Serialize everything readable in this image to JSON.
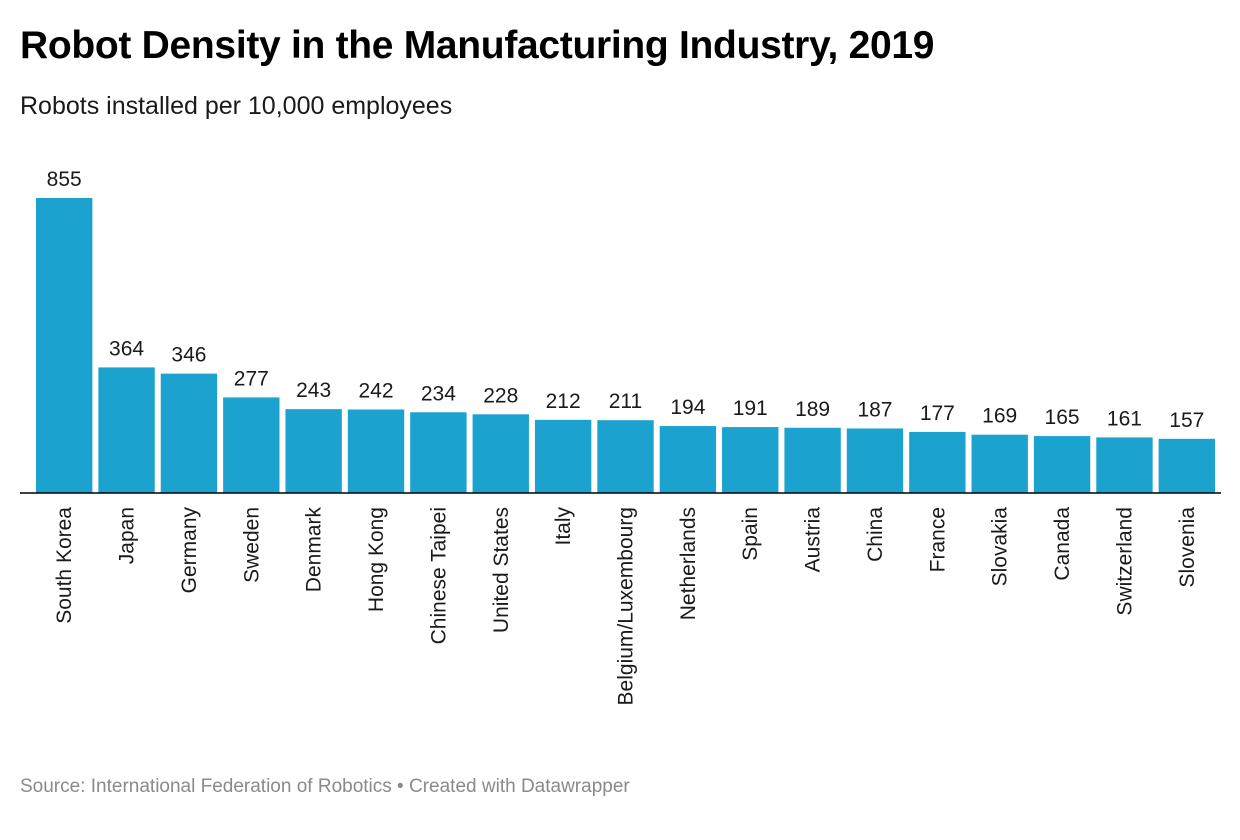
{
  "title": "Robot Density in the Manufacturing Industry, 2019",
  "subtitle": "Robots installed per 10,000 employees",
  "footer": {
    "source": "Source: International Federation of Robotics",
    "separator": " • ",
    "credit": "Created with Datawrapper"
  },
  "colors": {
    "bar": "#1ba2cf",
    "axis": "#000000"
  },
  "chart_data": {
    "type": "bar",
    "title": "Robot Density in the Manufacturing Industry, 2019",
    "subtitle": "Robots installed per 10,000 employees",
    "categories": [
      "South Korea",
      "Japan",
      "Germany",
      "Sweden",
      "Denmark",
      "Hong Kong",
      "Chinese Taipei",
      "United States",
      "Italy",
      "Belgium/Luxembourg",
      "Netherlands",
      "Spain",
      "Austria",
      "China",
      "France",
      "Slovakia",
      "Canada",
      "Switzerland",
      "Slovenia"
    ],
    "values": [
      855,
      364,
      346,
      277,
      243,
      242,
      234,
      228,
      212,
      211,
      194,
      191,
      189,
      187,
      177,
      169,
      165,
      161,
      157
    ],
    "xlabel": "",
    "ylabel": "",
    "ylim": [
      0,
      855
    ],
    "grid": false,
    "data_labels": true,
    "category_label_orientation": "vertical"
  }
}
